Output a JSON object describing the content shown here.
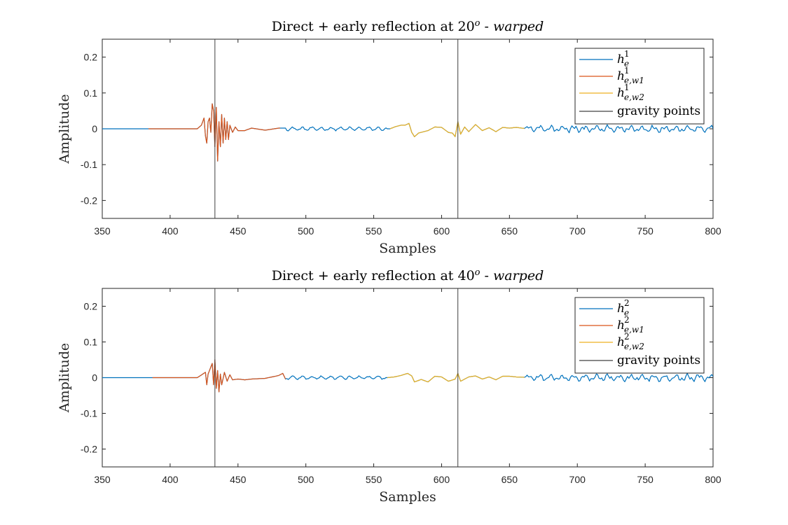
{
  "chart_data": [
    {
      "type": "line",
      "title": "Direct + early reflection at 20",
      "title_sup": "o",
      "title_suffix": " - ",
      "title_italic": "warped",
      "xlabel": "Samples",
      "ylabel": "Amplitude",
      "xlim": [
        350,
        800
      ],
      "ylim": [
        -0.25,
        0.25
      ],
      "xticks": [
        350,
        400,
        450,
        500,
        550,
        600,
        650,
        700,
        750,
        800
      ],
      "yticks": [
        0.2,
        0.1,
        0,
        -0.1,
        -0.2
      ],
      "ytick_labels": [
        "0.2",
        "0.1",
        "0",
        "-0.1",
        "-0.2"
      ],
      "legend_position": "top-right",
      "gravity_points": [
        433,
        612
      ],
      "series": [
        {
          "name": "h",
          "sup": "1",
          "sub": "e",
          "color": "#0072BD",
          "range": [
            350,
            800
          ],
          "profile": "base"
        },
        {
          "name": "h",
          "sup": "1",
          "sub": "e,w1",
          "color": "#D95319",
          "range": [
            384,
            481
          ],
          "profile": "direct"
        },
        {
          "name": "h",
          "sup": "1",
          "sub": "e,w2",
          "color": "#EDB120",
          "range": [
            562,
            661
          ],
          "profile": "reflection"
        },
        {
          "name": "gravity points",
          "color": "#404040",
          "type": "vline"
        }
      ],
      "approx_points": {
        "direct": [
          [
            420,
            0
          ],
          [
            423,
            0.01
          ],
          [
            425,
            0.03
          ],
          [
            426,
            -0.02
          ],
          [
            427,
            -0.04
          ],
          [
            428,
            0.02
          ],
          [
            429,
            0.03
          ],
          [
            430,
            -0.01
          ],
          [
            431,
            0.07
          ],
          [
            432,
            0.05
          ],
          [
            433,
            -0.05
          ],
          [
            434,
            0.06
          ],
          [
            435,
            -0.09
          ],
          [
            436,
            0.02
          ],
          [
            437,
            -0.05
          ],
          [
            438,
            0.04
          ],
          [
            439,
            -0.04
          ],
          [
            440,
            0.03
          ],
          [
            441,
            -0.03
          ],
          [
            442,
            0.02
          ],
          [
            443,
            -0.03
          ],
          [
            444,
            0.01
          ],
          [
            446,
            -0.01
          ],
          [
            448,
            0.005
          ],
          [
            450,
            -0.005
          ],
          [
            455,
            -0.005
          ],
          [
            460,
            0.002
          ],
          [
            470,
            -0.004
          ],
          [
            480,
            0.002
          ]
        ],
        "reflection": [
          [
            562,
            0
          ],
          [
            566,
            0.006
          ],
          [
            570,
            0.01
          ],
          [
            573,
            0.01
          ],
          [
            576,
            0.015
          ],
          [
            578,
            -0.01
          ],
          [
            580,
            -0.022
          ],
          [
            583,
            -0.012
          ],
          [
            587,
            -0.008
          ],
          [
            590,
            -0.005
          ],
          [
            595,
            0.005
          ],
          [
            600,
            0.004
          ],
          [
            605,
            -0.01
          ],
          [
            608,
            -0.012
          ],
          [
            610,
            -0.022
          ],
          [
            612,
            0.02
          ],
          [
            614,
            -0.015
          ],
          [
            617,
            0.005
          ],
          [
            620,
            -0.008
          ],
          [
            625,
            0.012
          ],
          [
            630,
            -0.005
          ],
          [
            635,
            0.003
          ],
          [
            640,
            -0.008
          ],
          [
            645,
            0.004
          ],
          [
            650,
            0.002
          ],
          [
            655,
            0.004
          ],
          [
            661,
            0.001
          ]
        ]
      }
    },
    {
      "type": "line",
      "title": "Direct + early reflection at 40",
      "title_sup": "o",
      "title_suffix": " - ",
      "title_italic": "warped",
      "xlabel": "Samples",
      "ylabel": "Amplitude",
      "xlim": [
        350,
        800
      ],
      "ylim": [
        -0.25,
        0.25
      ],
      "xticks": [
        350,
        400,
        450,
        500,
        550,
        600,
        650,
        700,
        750,
        800
      ],
      "yticks": [
        0.2,
        0.1,
        0,
        -0.1,
        -0.2
      ],
      "ytick_labels": [
        "0.2",
        "0.1",
        "0",
        "-0.1",
        "-0.2"
      ],
      "legend_position": "top-right",
      "gravity_points": [
        433,
        612
      ],
      "series": [
        {
          "name": "h",
          "sup": "2",
          "sub": "e",
          "color": "#0072BD",
          "range": [
            350,
            800
          ],
          "profile": "base"
        },
        {
          "name": "h",
          "sup": "2",
          "sub": "e,w1",
          "color": "#D95319",
          "range": [
            387,
            485
          ],
          "profile": "direct"
        },
        {
          "name": "h",
          "sup": "2",
          "sub": "e,w2",
          "color": "#EDB120",
          "range": [
            560,
            661
          ],
          "profile": "reflection"
        },
        {
          "name": "gravity points",
          "color": "#404040",
          "type": "vline"
        }
      ],
      "approx_points": {
        "direct": [
          [
            420,
            0
          ],
          [
            424,
            0.01
          ],
          [
            426,
            0.015
          ],
          [
            427,
            -0.02
          ],
          [
            428,
            0.01
          ],
          [
            430,
            0.03
          ],
          [
            431,
            0.04
          ],
          [
            432,
            -0.02
          ],
          [
            433,
            0.05
          ],
          [
            434,
            -0.03
          ],
          [
            435,
            0.02
          ],
          [
            436,
            -0.04
          ],
          [
            437,
            0.01
          ],
          [
            438,
            -0.02
          ],
          [
            440,
            0.015
          ],
          [
            442,
            -0.01
          ],
          [
            444,
            0.008
          ],
          [
            446,
            -0.006
          ],
          [
            450,
            -0.004
          ],
          [
            455,
            -0.006
          ],
          [
            460,
            -0.004
          ],
          [
            470,
            -0.002
          ],
          [
            480,
            0.006
          ],
          [
            483,
            0.012
          ],
          [
            485,
            -0.004
          ]
        ],
        "reflection": [
          [
            560,
            0
          ],
          [
            565,
            0.002
          ],
          [
            570,
            0.006
          ],
          [
            575,
            0.012
          ],
          [
            578,
            0.005
          ],
          [
            580,
            -0.012
          ],
          [
            585,
            -0.005
          ],
          [
            590,
            -0.012
          ],
          [
            595,
            0.004
          ],
          [
            600,
            0.002
          ],
          [
            605,
            -0.01
          ],
          [
            610,
            -0.004
          ],
          [
            612,
            0.012
          ],
          [
            614,
            -0.01
          ],
          [
            617,
            -0.004
          ],
          [
            620,
            0.002
          ],
          [
            625,
            0.005
          ],
          [
            630,
            -0.004
          ],
          [
            635,
            0.002
          ],
          [
            640,
            -0.006
          ],
          [
            645,
            0.004
          ],
          [
            650,
            0.004
          ],
          [
            655,
            0.002
          ],
          [
            661,
            0.001
          ]
        ]
      }
    }
  ]
}
